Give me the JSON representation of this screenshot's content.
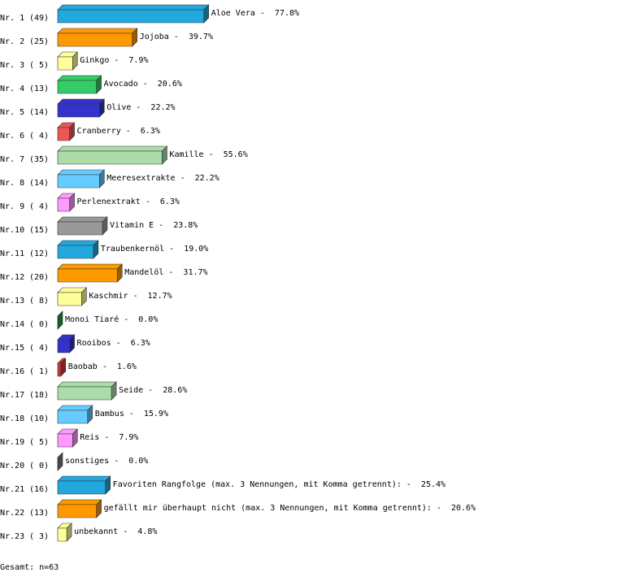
{
  "chart_data": {
    "type": "bar3d",
    "ranks": [
      "Nr. 1",
      "Nr. 2",
      "Nr. 3",
      "Nr. 4",
      "Nr. 5",
      "Nr. 6",
      "Nr. 7",
      "Nr. 8",
      "Nr. 9",
      "Nr.10",
      "Nr.11",
      "Nr.12",
      "Nr.13",
      "Nr.14",
      "Nr.15",
      "Nr.16",
      "Nr.17",
      "Nr.18",
      "Nr.19",
      "Nr.20",
      "Nr.21",
      "Nr.22",
      "Nr.23"
    ],
    "counts": [
      49,
      25,
      5,
      13,
      14,
      4,
      35,
      14,
      4,
      15,
      12,
      20,
      8,
      0,
      4,
      1,
      18,
      10,
      5,
      0,
      16,
      13,
      3
    ],
    "count_labels": [
      "(49)",
      "(25)",
      "( 5)",
      "(13)",
      "(14)",
      "( 4)",
      "(35)",
      "(14)",
      "( 4)",
      "(15)",
      "(12)",
      "(20)",
      "( 8)",
      "( 0)",
      "( 4)",
      "( 1)",
      "(18)",
      "(10)",
      "( 5)",
      "( 0)",
      "(16)",
      "(13)",
      "( 3)"
    ],
    "categories": [
      "Aloe Vera",
      "Jojoba",
      "Ginkgo",
      "Avocado",
      "Olive",
      "Cranberry",
      "Kamille",
      "Meeresextrakte",
      "Perlenextrakt",
      "Vitamin E",
      "Traubenkernöl",
      "Mandelöl",
      "Kaschmir",
      "Monoi Tiaré",
      "Rooibos",
      "Baobab",
      "Seide",
      "Bambus",
      "Reis",
      "sonstiges",
      "Favoriten Rangfolge (max. 3 Nennungen, mit Komma getrennt):",
      "gefällt mir überhaupt nicht (max. 3 Nennungen, mit Komma getrennt):",
      "unbekannt"
    ],
    "separator": "-",
    "values": [
      77.8,
      39.7,
      7.9,
      20.6,
      22.2,
      6.3,
      55.6,
      22.2,
      6.3,
      23.8,
      19.0,
      31.7,
      12.7,
      0.0,
      6.3,
      1.6,
      28.6,
      15.9,
      7.9,
      0.0,
      25.4,
      20.6,
      4.8
    ],
    "value_labels": [
      "77.8%",
      "39.7%",
      "7.9%",
      "20.6%",
      "22.2%",
      "6.3%",
      "55.6%",
      "22.2%",
      "6.3%",
      "23.8%",
      "19.0%",
      "31.7%",
      "12.7%",
      "0.0%",
      "6.3%",
      "1.6%",
      "28.6%",
      "15.9%",
      "7.9%",
      "0.0%",
      "25.4%",
      "20.6%",
      "4.8%"
    ],
    "colors": [
      "#22a8dc",
      "#ff9900",
      "#ffff99",
      "#33cc66",
      "#3333cc",
      "#ee5555",
      "#aaddaa",
      "#66ccff",
      "#ff99ff",
      "#999999",
      "#22a8dc",
      "#ff9900",
      "#ffff99",
      "#229944",
      "#3333cc",
      "#dd3333",
      "#aaddaa",
      "#66ccff",
      "#ff99ff",
      "#777777",
      "#22a8dc",
      "#ff9900",
      "#ffff99"
    ],
    "footer": "Gesamt: n=63"
  }
}
